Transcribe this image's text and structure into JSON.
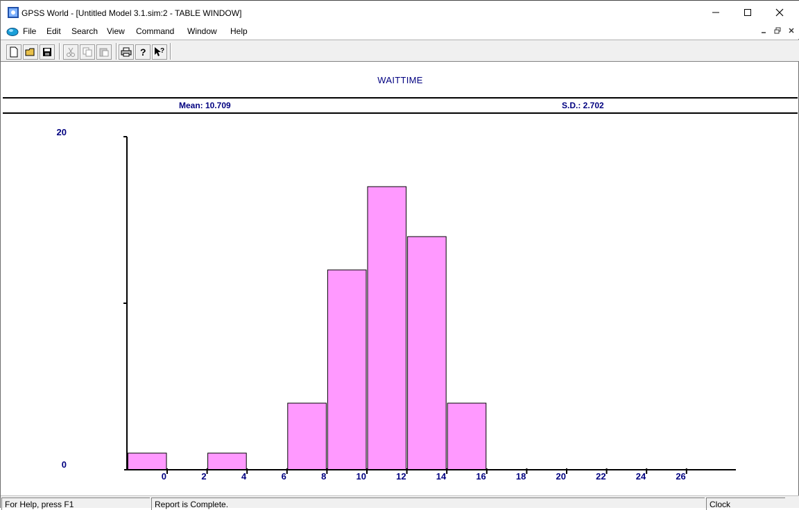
{
  "window": {
    "title": "GPSS World - [Untitled Model 3.1.sim:2  -  TABLE WINDOW]"
  },
  "menu": {
    "items": [
      "File",
      "Edit",
      "Search",
      "View",
      "Command",
      "Window",
      "Help"
    ]
  },
  "toolbar": {
    "buttons": [
      "new-icon",
      "open-icon",
      "save-icon",
      "cut-icon",
      "copy-icon",
      "paste-icon",
      "print-icon",
      "help-icon",
      "context-help-icon"
    ]
  },
  "table": {
    "title": "WAITTIME",
    "mean_label": "Mean: 10.709",
    "sd_label": "S.D.: 2.702"
  },
  "chart_data": {
    "type": "bar",
    "title": "WAITTIME",
    "x_ticks": [
      "0",
      "2",
      "4",
      "6",
      "8",
      "10",
      "12",
      "14",
      "16",
      "18",
      "20",
      "22",
      "24",
      "26"
    ],
    "y_ticks": [
      "0",
      "20"
    ],
    "ylim": [
      0,
      20
    ],
    "bins": [
      {
        "upper": 0,
        "value": 1
      },
      {
        "upper": 4,
        "value": 1
      },
      {
        "upper": 8,
        "value": 4
      },
      {
        "upper": 10,
        "value": 12
      },
      {
        "upper": 12,
        "value": 17
      },
      {
        "upper": 14,
        "value": 14
      },
      {
        "upper": 16,
        "value": 4
      }
    ],
    "bar_color": "#ff99ff",
    "axis_label_color": "#000080"
  },
  "status": {
    "help": "For Help, press F1",
    "message": "Report is Complete.",
    "clock": "Clock"
  }
}
